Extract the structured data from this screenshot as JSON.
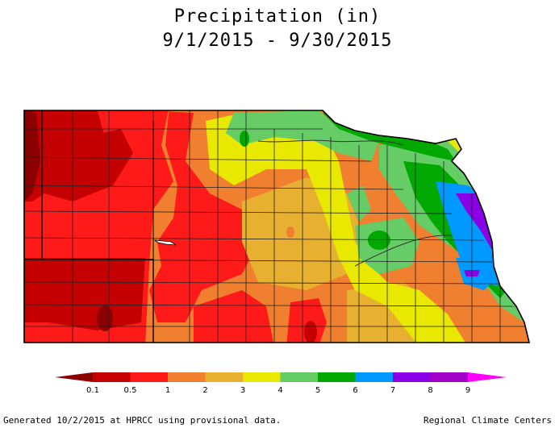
{
  "title": "Precipitation (in)",
  "date_range": "9/1/2015 - 9/30/2015",
  "legend": {
    "ticks": [
      "0.1",
      "0.5",
      "1",
      "2",
      "3",
      "4",
      "5",
      "6",
      "7",
      "8",
      "9"
    ],
    "colors": [
      "#8b0000",
      "#c40000",
      "#ff1a1a",
      "#f08030",
      "#e8b030",
      "#e8e800",
      "#66cc66",
      "#00a800",
      "#0099ff",
      "#8a00e6",
      "#a000c8",
      "#ff00ff"
    ]
  },
  "footer": {
    "generated": "Generated 10/2/2015 at HPRCC using provisional data.",
    "credit": "Regional Climate Centers"
  }
}
